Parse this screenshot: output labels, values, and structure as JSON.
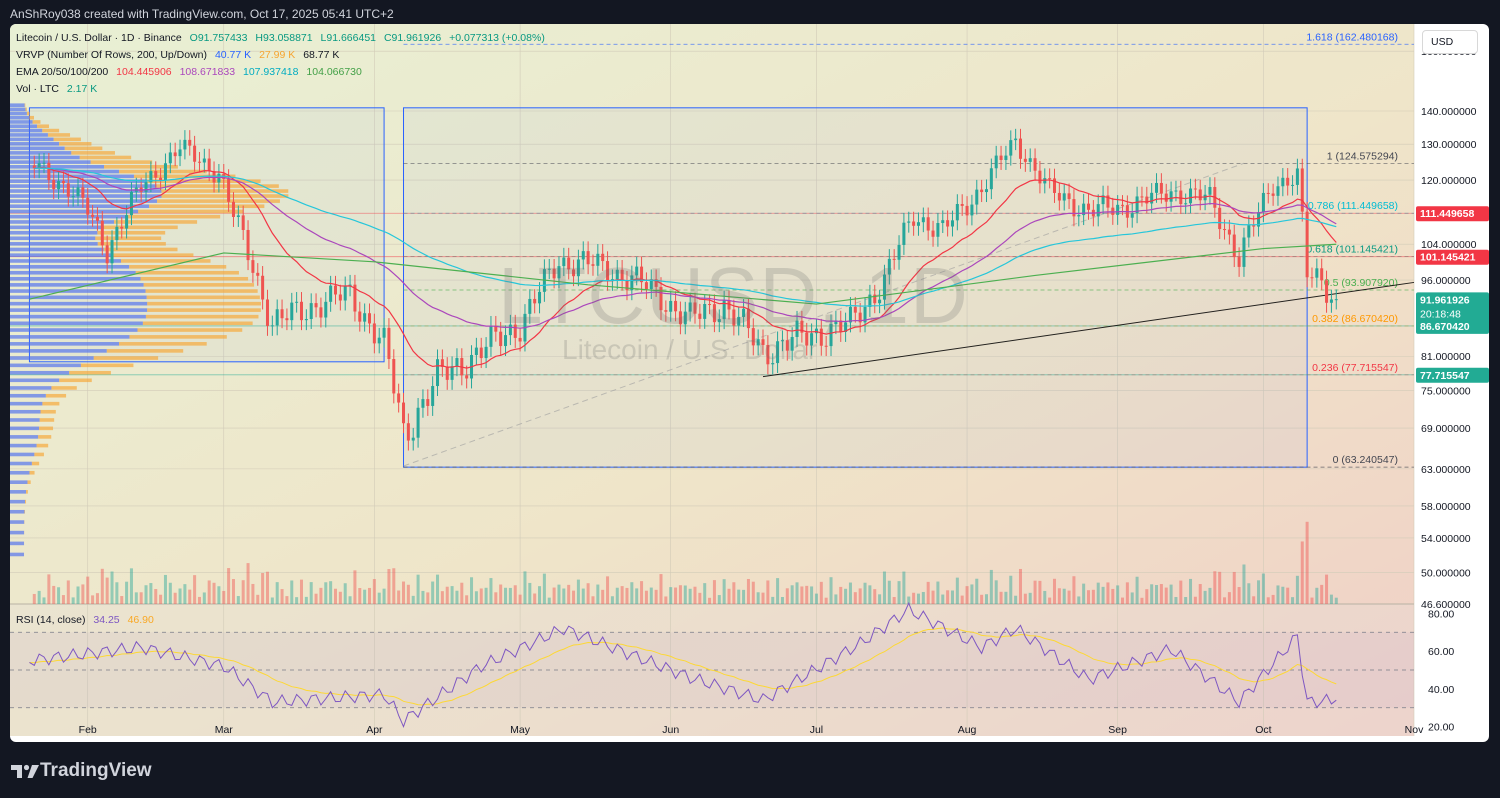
{
  "header": {
    "text": "AnShRoy038 created with TradingView.com, Oct 17, 2025 05:41 UTC+2"
  },
  "legend": {
    "symbol": "Litecoin / U.S. Dollar · 1D · Binance",
    "ohlc": {
      "o": "O91.757433",
      "h": "H93.058871",
      "l": "L91.666451",
      "c": "C91.961926",
      "chg": "+0.077313 (+0.08%)"
    },
    "vrvp": {
      "label": "VRVP (Number Of Rows, 200, Up/Down)",
      "up": "40.77 K",
      "down": "27.99 K",
      "total": "68.77 K"
    },
    "ema": {
      "label": "EMA 20/50/100/200",
      "v20": "104.445906",
      "v50": "108.671833",
      "v100": "107.937418",
      "v200": "104.066730"
    },
    "vol": {
      "label": "Vol · LTC",
      "value": "2.17 K"
    },
    "rsi": {
      "label": "RSI (14, close)",
      "rsi": "34.25",
      "ma": "46.90"
    }
  },
  "currency_button": "USD",
  "watermark": {
    "title": "LTCUSD, 1D",
    "subtitle": "Litecoin / U.S. Dollar"
  },
  "footer": {
    "brand": "TradingView"
  },
  "colors": {
    "up": "#26a69a",
    "down": "#ef5350",
    "ema20": "#f23645",
    "ema50": "#ab47bc",
    "ema100": "#26c6da",
    "ema200": "#4caf50",
    "rsi": "#7e57c2",
    "rsi_ma": "#fdd835",
    "vrvp_up": "#4a6cf0",
    "vrvp_down": "#f7a531"
  },
  "chart_data": {
    "type": "candlestick",
    "price_axis": {
      "range": [
        46.6,
        170
      ],
      "scale": "log",
      "ticks": [
        "160.000000",
        "140.000000",
        "130.000000",
        "120.000000",
        "104.000000",
        "96.000000",
        "81.000000",
        "75.000000",
        "69.000000",
        "63.000000",
        "58.000000",
        "54.000000",
        "50.000000",
        "46.600000"
      ]
    },
    "time_axis": {
      "range": [
        "2025-01-16",
        "2025-11-01"
      ],
      "ticks": [
        "Feb",
        "Mar",
        "Apr",
        "May",
        "Jun",
        "Jul",
        "Aug",
        "Sep",
        "Oct",
        "Nov"
      ]
    },
    "rsi_axis": {
      "range": [
        15,
        85
      ],
      "ticks": [
        "80.00",
        "60.00",
        "40.00",
        "20.00"
      ],
      "bands": [
        70,
        50,
        30
      ]
    },
    "price_labels": [
      {
        "text": "111.449658",
        "value": 111.449658,
        "color": "#f23645"
      },
      {
        "text": "101.145421",
        "value": 101.145421,
        "color": "#f23645"
      },
      {
        "text": "91.961926",
        "value": 91.961926,
        "color": "#22ab94",
        "countdown": "20:18:48"
      },
      {
        "text": "86.670420",
        "value": 86.67042,
        "color": "#22ab94"
      },
      {
        "text": "77.715547",
        "value": 77.715547,
        "color": "#22ab94"
      }
    ],
    "fib_levels": [
      {
        "label": "1.618 (162.480168)",
        "value": 162.480168,
        "color": "#2962ff"
      },
      {
        "label": "1 (124.575294)",
        "value": 124.575294,
        "color": "#434651"
      },
      {
        "label": "0.786 (111.449658)",
        "value": 111.449658,
        "color": "#00bcd4"
      },
      {
        "label": "0.618 (101.145421)",
        "value": 101.145421,
        "color": "#089981"
      },
      {
        "label": "0.5 (93.907920)",
        "value": 93.90792,
        "color": "#4caf50"
      },
      {
        "label": "0.382 (86.670420)",
        "value": 86.67042,
        "color": "#ff9800"
      },
      {
        "label": "0.236 (77.715547)",
        "value": 77.715547,
        "color": "#f23645"
      },
      {
        "label": "0 (63.240547)",
        "value": 63.240547,
        "color": "#434651"
      }
    ],
    "rectangles": [
      {
        "from": "2025-01-20",
        "to": "2025-04-03",
        "top": 141,
        "bottom": 80,
        "color": "#2962ff"
      },
      {
        "from": "2025-04-07",
        "to": "2025-10-10",
        "top": 141,
        "bottom": 63.24,
        "color": "#2962ff"
      }
    ],
    "trendlines": [
      {
        "from": [
          "2025-06-20",
          77.4
        ],
        "to": [
          "2025-11-01",
          95.5
        ],
        "color": "#000000"
      },
      {
        "from": [
          "2025-04-07",
          63.4
        ],
        "to": [
          "2025-09-27",
          124.6
        ],
        "color": "#9e9e9e",
        "dashed": true
      }
    ],
    "sample": [
      {
        "date": "2025-01-21",
        "close": 124
      },
      {
        "date": "2025-01-28",
        "close": 118
      },
      {
        "date": "2025-02-01",
        "close": 112
      },
      {
        "date": "2025-02-05",
        "close": 103
      },
      {
        "date": "2025-02-12",
        "close": 118
      },
      {
        "date": "2025-02-20",
        "close": 129
      },
      {
        "date": "2025-02-28",
        "close": 122
      },
      {
        "date": "2025-03-03",
        "close": 111
      },
      {
        "date": "2025-03-11",
        "close": 87
      },
      {
        "date": "2025-03-20",
        "close": 91
      },
      {
        "date": "2025-03-27",
        "close": 93
      },
      {
        "date": "2025-04-03",
        "close": 83
      },
      {
        "date": "2025-04-07",
        "close": 68
      },
      {
        "date": "2025-04-14",
        "close": 77
      },
      {
        "date": "2025-04-23",
        "close": 82
      },
      {
        "date": "2025-05-01",
        "close": 87
      },
      {
        "date": "2025-05-09",
        "close": 100
      },
      {
        "date": "2025-05-14",
        "close": 100
      },
      {
        "date": "2025-05-25",
        "close": 96
      },
      {
        "date": "2025-06-05",
        "close": 88
      },
      {
        "date": "2025-06-12",
        "close": 91
      },
      {
        "date": "2025-06-20",
        "close": 82
      },
      {
        "date": "2025-06-30",
        "close": 85
      },
      {
        "date": "2025-07-08",
        "close": 87
      },
      {
        "date": "2025-07-15",
        "close": 96
      },
      {
        "date": "2025-07-21",
        "close": 111
      },
      {
        "date": "2025-07-27",
        "close": 107
      },
      {
        "date": "2025-08-04",
        "close": 118
      },
      {
        "date": "2025-08-11",
        "close": 131
      },
      {
        "date": "2025-08-18",
        "close": 117
      },
      {
        "date": "2025-08-26",
        "close": 112
      },
      {
        "date": "2025-09-02",
        "close": 113
      },
      {
        "date": "2025-09-12",
        "close": 117
      },
      {
        "date": "2025-09-20",
        "close": 115
      },
      {
        "date": "2025-09-26",
        "close": 101
      },
      {
        "date": "2025-10-03",
        "close": 119
      },
      {
        "date": "2025-10-08",
        "close": 121
      },
      {
        "date": "2025-10-10",
        "close": 97
      },
      {
        "date": "2025-10-13",
        "close": 96
      },
      {
        "date": "2025-10-16",
        "close": 92
      }
    ],
    "ema200_sample": [
      {
        "date": "2025-01-20",
        "value": 92
      },
      {
        "date": "2025-03-01",
        "value": 102
      },
      {
        "date": "2025-04-01",
        "value": 100
      },
      {
        "date": "2025-05-15",
        "value": 95
      },
      {
        "date": "2025-07-01",
        "value": 91
      },
      {
        "date": "2025-08-15",
        "value": 97
      },
      {
        "date": "2025-10-01",
        "value": 103
      },
      {
        "date": "2025-10-16",
        "value": 104
      }
    ],
    "rsi_sample": [
      {
        "date": "2025-01-20",
        "value": 55
      },
      {
        "date": "2025-02-12",
        "value": 62
      },
      {
        "date": "2025-03-01",
        "value": 52
      },
      {
        "date": "2025-03-11",
        "value": 33
      },
      {
        "date": "2025-04-03",
        "value": 37
      },
      {
        "date": "2025-04-07",
        "value": 23
      },
      {
        "date": "2025-04-23",
        "value": 52
      },
      {
        "date": "2025-05-10",
        "value": 72
      },
      {
        "date": "2025-06-05",
        "value": 46
      },
      {
        "date": "2025-06-20",
        "value": 34
      },
      {
        "date": "2025-07-10",
        "value": 64
      },
      {
        "date": "2025-07-20",
        "value": 82
      },
      {
        "date": "2025-08-04",
        "value": 62
      },
      {
        "date": "2025-08-11",
        "value": 72
      },
      {
        "date": "2025-08-26",
        "value": 45
      },
      {
        "date": "2025-09-12",
        "value": 61
      },
      {
        "date": "2025-09-26",
        "value": 33
      },
      {
        "date": "2025-10-08",
        "value": 68
      },
      {
        "date": "2025-10-10",
        "value": 33
      },
      {
        "date": "2025-10-16",
        "value": 34
      }
    ]
  }
}
